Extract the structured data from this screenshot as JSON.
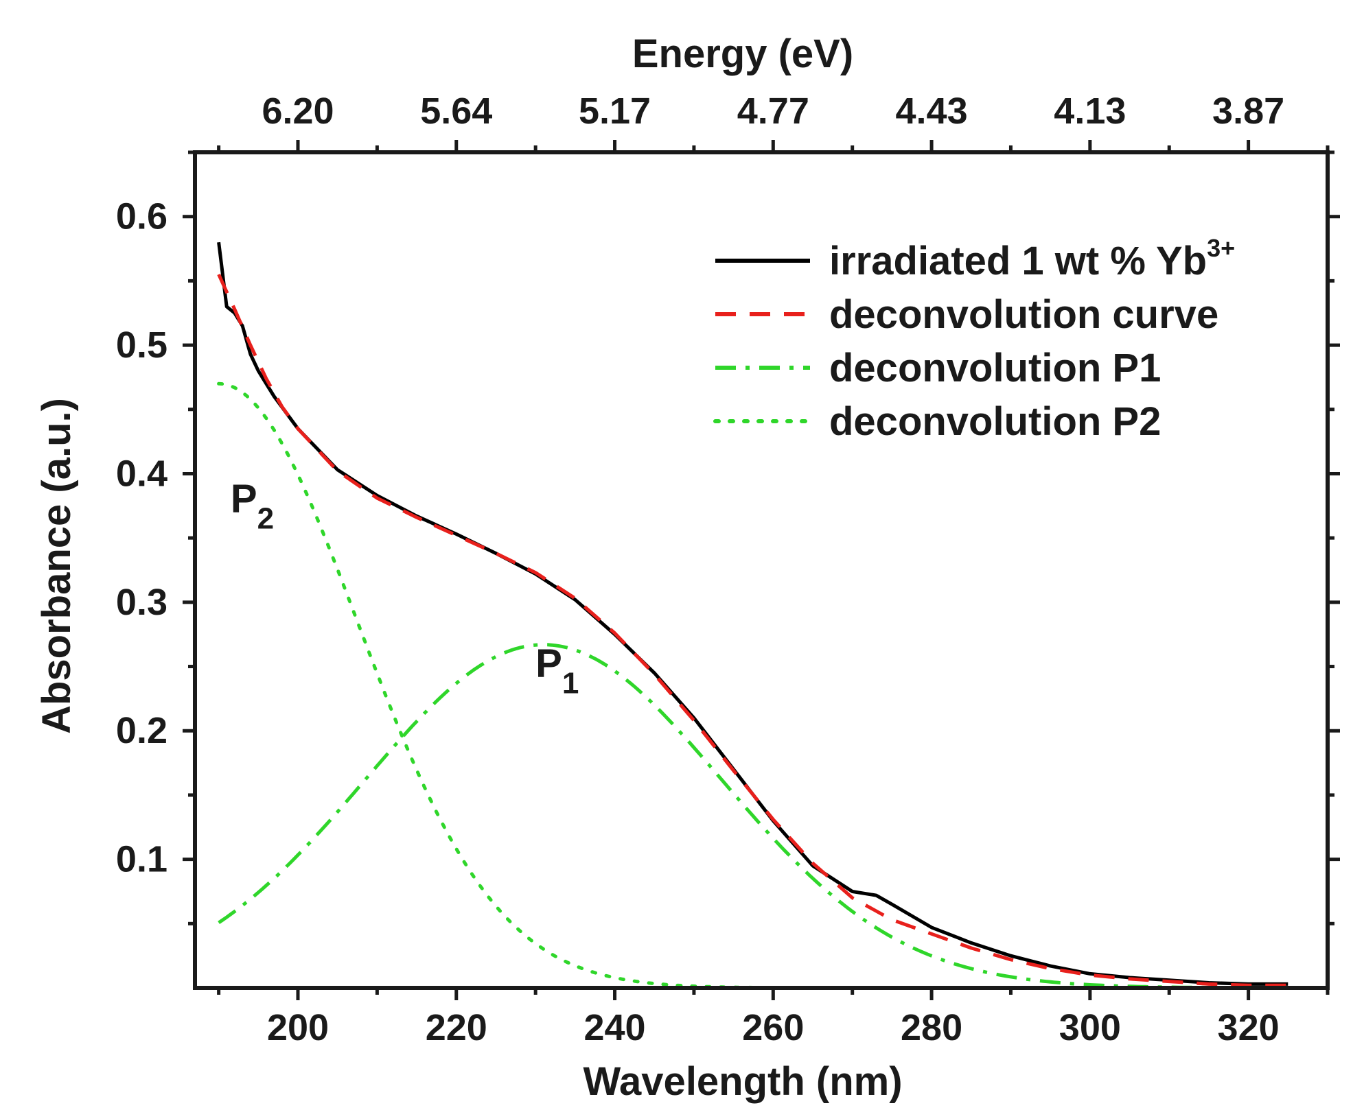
{
  "chart_data": {
    "type": "line",
    "x_axis": {
      "label": "Wavelength (nm)",
      "range": [
        187,
        330
      ],
      "ticks": [
        200,
        220,
        240,
        260,
        280,
        300,
        320
      ],
      "tick_labels": [
        "200",
        "220",
        "240",
        "260",
        "280",
        "300",
        "320"
      ],
      "minor_step": 10
    },
    "x2_axis": {
      "label": "Energy (eV)",
      "ticks_wavelength": [
        200,
        220,
        240,
        260,
        280,
        300,
        320
      ],
      "tick_labels": [
        "6.20",
        "5.64",
        "5.17",
        "4.77",
        "4.43",
        "4.13",
        "3.87"
      ]
    },
    "y_axis": {
      "label": "Absorbance (a.u.)",
      "range": [
        0,
        0.65
      ],
      "ticks": [
        0.1,
        0.2,
        0.3,
        0.4,
        0.5,
        0.6
      ],
      "tick_labels": [
        "0.1",
        "0.2",
        "0.3",
        "0.4",
        "0.5",
        "0.6"
      ],
      "minor_step": 0.05
    },
    "legend": {
      "position": "top-right",
      "entries": [
        {
          "label": "irradiated 1 wt % Yb",
          "superscript": "3+",
          "series": "irradiated"
        },
        {
          "label": "deconvolution curve",
          "series": "deconv_curve"
        },
        {
          "label": "deconvolution P1",
          "series": "deconv_p1"
        },
        {
          "label": "deconvolution P2",
          "series": "deconv_p2"
        }
      ]
    },
    "annotations": [
      {
        "main": "P",
        "sub": "2",
        "x": 191.5,
        "y": 0.37
      },
      {
        "main": "P",
        "sub": "1",
        "x": 230,
        "y": 0.242
      }
    ],
    "series": [
      {
        "id": "irradiated",
        "name": "irradiated 1 wt % Yb3+",
        "color": "#000000",
        "style": "solid",
        "points": [
          [
            190,
            0.58
          ],
          [
            191,
            0.53
          ],
          [
            192,
            0.525
          ],
          [
            193,
            0.515
          ],
          [
            194,
            0.493
          ],
          [
            195,
            0.48
          ],
          [
            197,
            0.46
          ],
          [
            200,
            0.435
          ],
          [
            205,
            0.403
          ],
          [
            210,
            0.383
          ],
          [
            215,
            0.367
          ],
          [
            220,
            0.353
          ],
          [
            225,
            0.338
          ],
          [
            230,
            0.322
          ],
          [
            235,
            0.302
          ],
          [
            240,
            0.275
          ],
          [
            245,
            0.245
          ],
          [
            250,
            0.21
          ],
          [
            255,
            0.17
          ],
          [
            260,
            0.13
          ],
          [
            265,
            0.095
          ],
          [
            270,
            0.075
          ],
          [
            273,
            0.072
          ],
          [
            275,
            0.065
          ],
          [
            280,
            0.047
          ],
          [
            285,
            0.035
          ],
          [
            290,
            0.025
          ],
          [
            295,
            0.017
          ],
          [
            300,
            0.011
          ],
          [
            305,
            0.008
          ],
          [
            310,
            0.006
          ],
          [
            315,
            0.004
          ],
          [
            320,
            0.003
          ],
          [
            325,
            0.003
          ]
        ]
      },
      {
        "id": "deconv_curve",
        "name": "deconvolution curve",
        "color": "#e8201c",
        "style": "dashed",
        "points": [
          [
            190,
            0.555
          ],
          [
            192,
            0.528
          ],
          [
            194,
            0.5
          ],
          [
            196,
            0.474
          ],
          [
            198,
            0.452
          ],
          [
            200,
            0.435
          ],
          [
            205,
            0.402
          ],
          [
            210,
            0.381
          ],
          [
            215,
            0.366
          ],
          [
            220,
            0.352
          ],
          [
            225,
            0.338
          ],
          [
            230,
            0.323
          ],
          [
            235,
            0.303
          ],
          [
            240,
            0.276
          ],
          [
            245,
            0.244
          ],
          [
            250,
            0.208
          ],
          [
            255,
            0.169
          ],
          [
            260,
            0.131
          ],
          [
            265,
            0.097
          ],
          [
            270,
            0.07
          ],
          [
            275,
            0.053
          ],
          [
            280,
            0.042
          ],
          [
            285,
            0.031
          ],
          [
            290,
            0.022
          ],
          [
            295,
            0.015
          ],
          [
            300,
            0.01
          ],
          [
            305,
            0.007
          ],
          [
            310,
            0.005
          ],
          [
            315,
            0.003
          ],
          [
            320,
            0.002
          ],
          [
            325,
            0.002
          ]
        ]
      },
      {
        "id": "deconv_p1",
        "name": "deconvolution P1",
        "color": "#2fd62a",
        "style": "dash-dot",
        "model": "gaussian",
        "amplitude": 0.267,
        "center": 231,
        "sigma": 22.5,
        "x_range": [
          190,
          325
        ]
      },
      {
        "id": "deconv_p2",
        "name": "deconvolution P2",
        "color": "#2fd62a",
        "style": "dotted",
        "model": "gaussian",
        "amplitude": 0.47,
        "center": 190,
        "sigma": 17.5,
        "x_range": [
          190,
          325
        ]
      }
    ]
  }
}
